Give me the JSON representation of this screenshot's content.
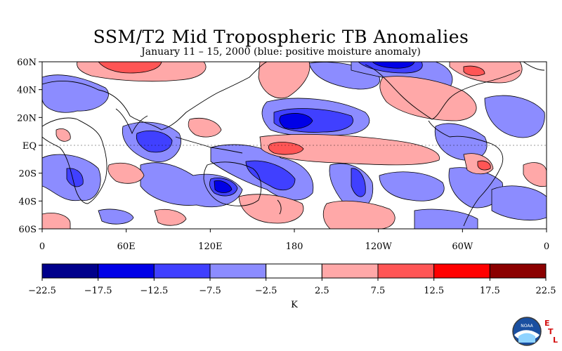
{
  "title": "SSM/T2 Mid Tropospheric TB Anomalies",
  "subtitle": "January 11 – 15, 2000 (blue: positive moisture anomaly)",
  "map": {
    "lat_labels": [
      "60N",
      "40N",
      "20N",
      "EQ",
      "20S",
      "40S",
      "60S"
    ],
    "lon_labels": [
      "0",
      "60E",
      "120E",
      "180",
      "120W",
      "60W",
      "0"
    ]
  },
  "colorbar": {
    "colors": [
      "#00008b",
      "#0000e6",
      "#4040ff",
      "#8c8cff",
      "#ffffff",
      "#ffa8a8",
      "#ff5555",
      "#ff0000",
      "#8b0000"
    ],
    "tick_labels": [
      "−22.5",
      "−17.5",
      "−12.5",
      "−7.5",
      "−2.5",
      "2.5",
      "7.5",
      "12.5",
      "17.5",
      "22.5"
    ],
    "unit_label": "K"
  },
  "logo": {
    "text": "NOAA",
    "etl_letters": [
      "E",
      "T",
      "L"
    ]
  }
}
